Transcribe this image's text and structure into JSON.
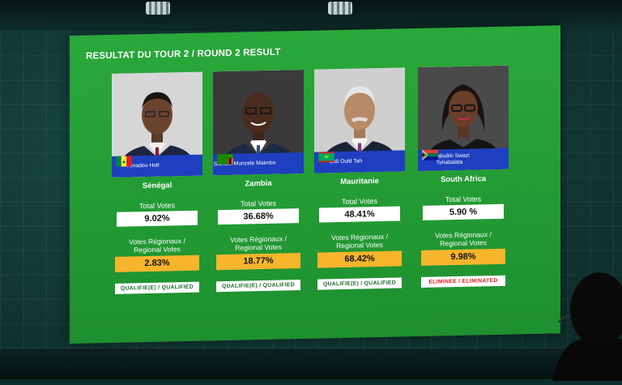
{
  "screen": {
    "title": "RESULTAT  DU TOUR 2 / ROUND 2 RESULT",
    "label_total": "Total Votes",
    "label_regional_line1": "Votes Régionaux /",
    "label_regional_line2": "Regional Votes"
  },
  "candidates": [
    {
      "name": "Amadou Hott",
      "country": "Sénégal",
      "total_votes": "9.02%",
      "regional_votes": "2.83%",
      "status": "QUALIFIE(E) / QUALIFIED",
      "flag": "senegal-flag"
    },
    {
      "name": "Samuel Munzele Maimbo",
      "country": "Zambia",
      "total_votes": "36.68%",
      "regional_votes": "18.77%",
      "status": "QUALIFIE(E) / QUALIFIED",
      "flag": "zambia-flag"
    },
    {
      "name": "Sidi Ould Tah",
      "country": "Mauritanie",
      "total_votes": "48.41%",
      "regional_votes": "68.42%",
      "status": "QUALIFIE(E) / QUALIFIED",
      "flag": "mauritania-flag"
    },
    {
      "name": "Bajabulile Swazi Tshabalala",
      "country": "South Africa",
      "total_votes": "5.90 %",
      "regional_votes": "9.98%",
      "status": "ELIMINEE / ELIMINATED",
      "flag": "south-africa-flag"
    }
  ],
  "colors": {
    "screen_green": "#239b34",
    "nameplate_blue": "#1e3fbf",
    "regional_box_orange": "#f7b52c",
    "qualified_text": "#1a6b2a",
    "eliminated_text": "#d81b1b"
  }
}
